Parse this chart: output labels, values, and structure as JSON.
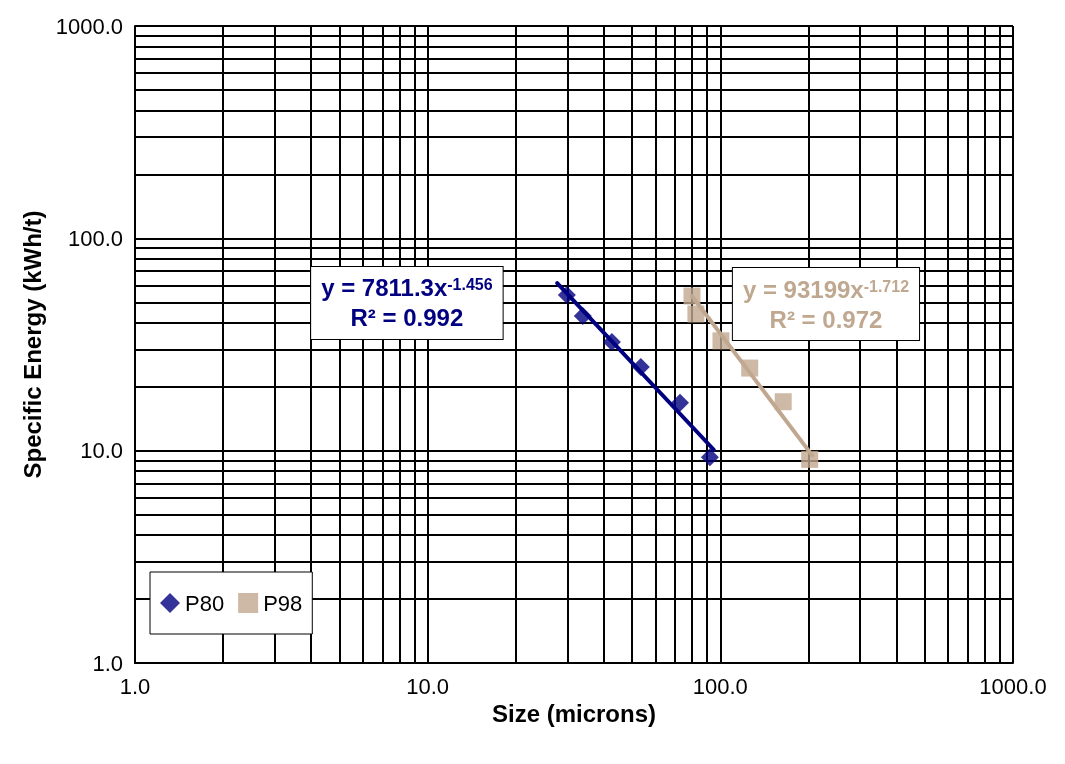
{
  "chart_data": {
    "type": "scatter",
    "xlabel": "Size (microns)",
    "ylabel": "Specific Energy (kWh/t)",
    "log": "xy",
    "grid": true,
    "legend": "bottom left",
    "xlim": [
      1,
      1000
    ],
    "ylim": [
      1,
      1000
    ],
    "xticks": [
      {
        "value": 1,
        "label": "1.0"
      },
      {
        "value": 10,
        "label": "10.0"
      },
      {
        "value": 100,
        "label": "100.0"
      },
      {
        "value": 1000,
        "label": "1000.0"
      }
    ],
    "yticks": [
      {
        "value": 1,
        "label": "1.0"
      },
      {
        "value": 10,
        "label": "10.0"
      },
      {
        "value": 100,
        "label": "100.0"
      },
      {
        "value": 1000,
        "label": "1000.0"
      }
    ],
    "series": [
      {
        "name": "P80",
        "color": "#000080",
        "marker": "diamond",
        "x": [
          29.9,
          33.9,
          42.6,
          53.5,
          72.8,
          92.1
        ],
        "values": [
          54.1,
          43.1,
          32.5,
          24.8,
          16.8,
          9.3
        ]
      },
      {
        "name": "P98",
        "color": "#c0a890",
        "marker": "square",
        "x": [
          80,
          82.5,
          100.5,
          126,
          164,
          202
        ],
        "values": [
          53.5,
          44,
          32.9,
          24.5,
          17,
          9.1
        ]
      },
      {
        "type": "line",
        "color": "#000080",
        "marker": "none",
        "x": [
          27.7,
          95
        ],
        "values": [
          61.6,
          10.1
        ]
      },
      {
        "type": "line",
        "color": "#c0a890",
        "marker": "none",
        "x": [
          80,
          206
        ],
        "values": [
          53.5,
          9.5
        ]
      }
    ],
    "annotations": [
      "y = 7811.3x$^{-1.456}$\nR² = 0.992",
      "y = 93199x$^{-1.712}$\nR² = 0.972"
    ]
  }
}
